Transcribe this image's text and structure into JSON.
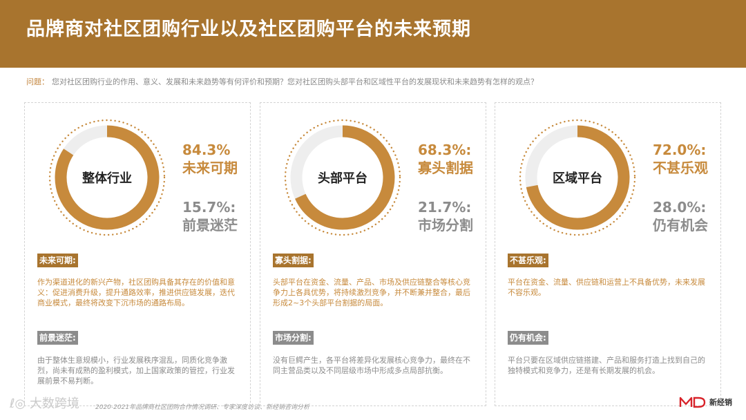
{
  "header": {
    "title": "品牌商对社区团购行业以及社区团购平台的未来预期"
  },
  "question": {
    "label": "问题：",
    "text": "您对社区团购行业的作用、意义、发展和未来趋势等有何评价和预期？您对社区团购头部平台和区域性平台的发展现状和未来趋势有怎样的观点？"
  },
  "colors": {
    "brand": "#a8742e",
    "accent": "#c78a3c",
    "gray": "#8c8c8c",
    "track": "#eeeeee"
  },
  "panels": [
    {
      "center_label": "整体行业",
      "primary_fraction": 0.843,
      "stat1_pct": "84.3%",
      "stat1_label": "未来可期",
      "stat2_pct": "15.7%:",
      "stat2_label": "前景迷茫",
      "tag1": "未来可期:",
      "para1": "作为渠道进化的新兴产物，社区团购具备其存在的价值和意义：促进消费升级，提升通路效率，推进供应链发展，迭代商业模式，最终将改变下沉市场的通路布局。",
      "tag2": "前景迷茫:",
      "para2": "由于整体生意规模小，行业发展秩序混乱，同质化竞争激烈，尚未有成熟的盈利模式，加上国家政策的管控，行业发展前景不易判断。"
    },
    {
      "center_label": "头部平台",
      "primary_fraction": 0.683,
      "stat1_pct": "68.3%:",
      "stat1_label": "寡头割据",
      "stat2_pct": "21.7%:",
      "stat2_label": "市场分割",
      "tag1": "寡头割据:",
      "para1": "头部平台在资金、流量、产品、市场及供应链整合等核心竞争力上各具优势，将持续激烈竞争，并不断兼并整合，最后形成2~3个头部平台割据的局面。",
      "tag2": "市场分割:",
      "para2": "没有巨鳄产生，各平台将差异化发展核心竞争力，最终在不同主营品类以及不同层级市场中形成多点局部抗衡。"
    },
    {
      "center_label": "区域平台",
      "primary_fraction": 0.72,
      "stat1_pct": "72.0%:",
      "stat1_label": "不甚乐观",
      "stat2_pct": "28.0%:",
      "stat2_label": "仍有机会",
      "tag1": "不甚乐观:",
      "para1": "平台在资金、流量、供应链和运营上不具备优势，未来发展不容乐观。",
      "tag2": "仍有机会:",
      "para2": "平台只要在区域供应链搭建、产品和服务打造上找到自己的独特模式和竞争力，还是有长期发展的机会。"
    }
  ],
  "footer": {
    "watermark": "大数跨境",
    "source": "2020-2021年品牌商社区团购合作情况调研、专家深度访谈、新经销咨询分析",
    "brand_name": "新经销"
  }
}
